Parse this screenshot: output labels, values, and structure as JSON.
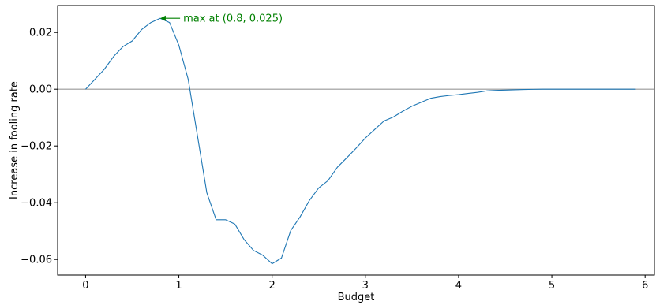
{
  "chart_data": {
    "type": "line",
    "title": "",
    "xlabel": "Budget",
    "ylabel": "Increase in fooling rate",
    "xlim": [
      -0.3,
      6.1
    ],
    "ylim": [
      -0.0655,
      0.0295
    ],
    "x_ticks": [
      0,
      1,
      2,
      3,
      4,
      5,
      6
    ],
    "x_tick_labels": [
      "0",
      "1",
      "2",
      "3",
      "4",
      "5",
      "6"
    ],
    "y_ticks": [
      0.02,
      0.0,
      -0.02,
      -0.04,
      -0.06
    ],
    "y_tick_labels": [
      "0.02",
      "0.00",
      "−0.02",
      "−0.04",
      "−0.06"
    ],
    "grid": false,
    "reference_line": {
      "y": 0.0,
      "color": "#999999"
    },
    "series": [
      {
        "color": "#1f77b4",
        "x": [
          0.0,
          0.1,
          0.2,
          0.3,
          0.4,
          0.5,
          0.6,
          0.7,
          0.8,
          0.9,
          1.0,
          1.1,
          1.2,
          1.3,
          1.4,
          1.5,
          1.6,
          1.7,
          1.8,
          1.9,
          2.0,
          2.1,
          2.2,
          2.3,
          2.4,
          2.5,
          2.6,
          2.7,
          2.8,
          2.9,
          3.0,
          3.1,
          3.2,
          3.3,
          3.4,
          3.5,
          3.6,
          3.7,
          3.8,
          3.9,
          4.0,
          4.1,
          4.2,
          4.3,
          4.4,
          4.5,
          4.6,
          4.7,
          4.8,
          4.9,
          5.0,
          5.1,
          5.2,
          5.3,
          5.4,
          5.5,
          5.6,
          5.7,
          5.8,
          5.9
        ],
        "y": [
          0.0,
          0.0035,
          0.007,
          0.0115,
          0.015,
          0.017,
          0.021,
          0.0235,
          0.025,
          0.0235,
          0.0155,
          0.0035,
          -0.0165,
          -0.0365,
          -0.046,
          -0.046,
          -0.0475,
          -0.053,
          -0.0568,
          -0.0585,
          -0.0615,
          -0.0595,
          -0.0498,
          -0.045,
          -0.0392,
          -0.0348,
          -0.0322,
          -0.0275,
          -0.0242,
          -0.0208,
          -0.0172,
          -0.0142,
          -0.0112,
          -0.0098,
          -0.0078,
          -0.006,
          -0.0046,
          -0.0032,
          -0.0026,
          -0.0022,
          -0.0019,
          -0.0015,
          -0.0011,
          -0.0006,
          -0.0004,
          -0.0003,
          -0.0002,
          -0.0001,
          -5e-05,
          0.0,
          0.0,
          0.0,
          0.0,
          0.0,
          0.0,
          0.0,
          0.0,
          0.0,
          0.0,
          0.0
        ]
      }
    ],
    "annotation": {
      "text": "max at (0.8, 0.025)",
      "x": 0.8,
      "y": 0.025,
      "text_x": 1.03,
      "text_y": 0.025,
      "color": "#008000"
    }
  }
}
